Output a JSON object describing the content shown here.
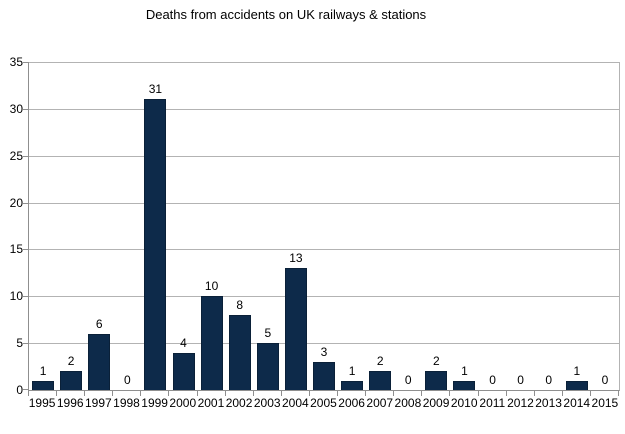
{
  "chart_data": {
    "type": "bar",
    "title": "Deaths from accidents on UK railways & stations",
    "categories": [
      "1995",
      "1996",
      "1997",
      "1998",
      "1999",
      "2000",
      "2001",
      "2002",
      "2003",
      "2004",
      "2005",
      "2006",
      "2007",
      "2008",
      "2009",
      "2010",
      "2011",
      "2012",
      "2013",
      "2014",
      "2015"
    ],
    "values": [
      1,
      2,
      6,
      0,
      31,
      4,
      10,
      8,
      5,
      13,
      3,
      1,
      2,
      0,
      2,
      1,
      0,
      0,
      0,
      1,
      0
    ],
    "xlabel": "",
    "ylabel": "",
    "ylim": [
      0,
      35
    ],
    "yticks": [
      0,
      5,
      10,
      15,
      20,
      25,
      30,
      35
    ],
    "grid": true,
    "legend_position": "none",
    "data_labels": true,
    "bar_color": "#0d2a4a",
    "bar_border_color": "#0a2038",
    "axis_color": "#8f8f8f",
    "grid_color": "#b3b3b3",
    "label_color": "#000000"
  }
}
